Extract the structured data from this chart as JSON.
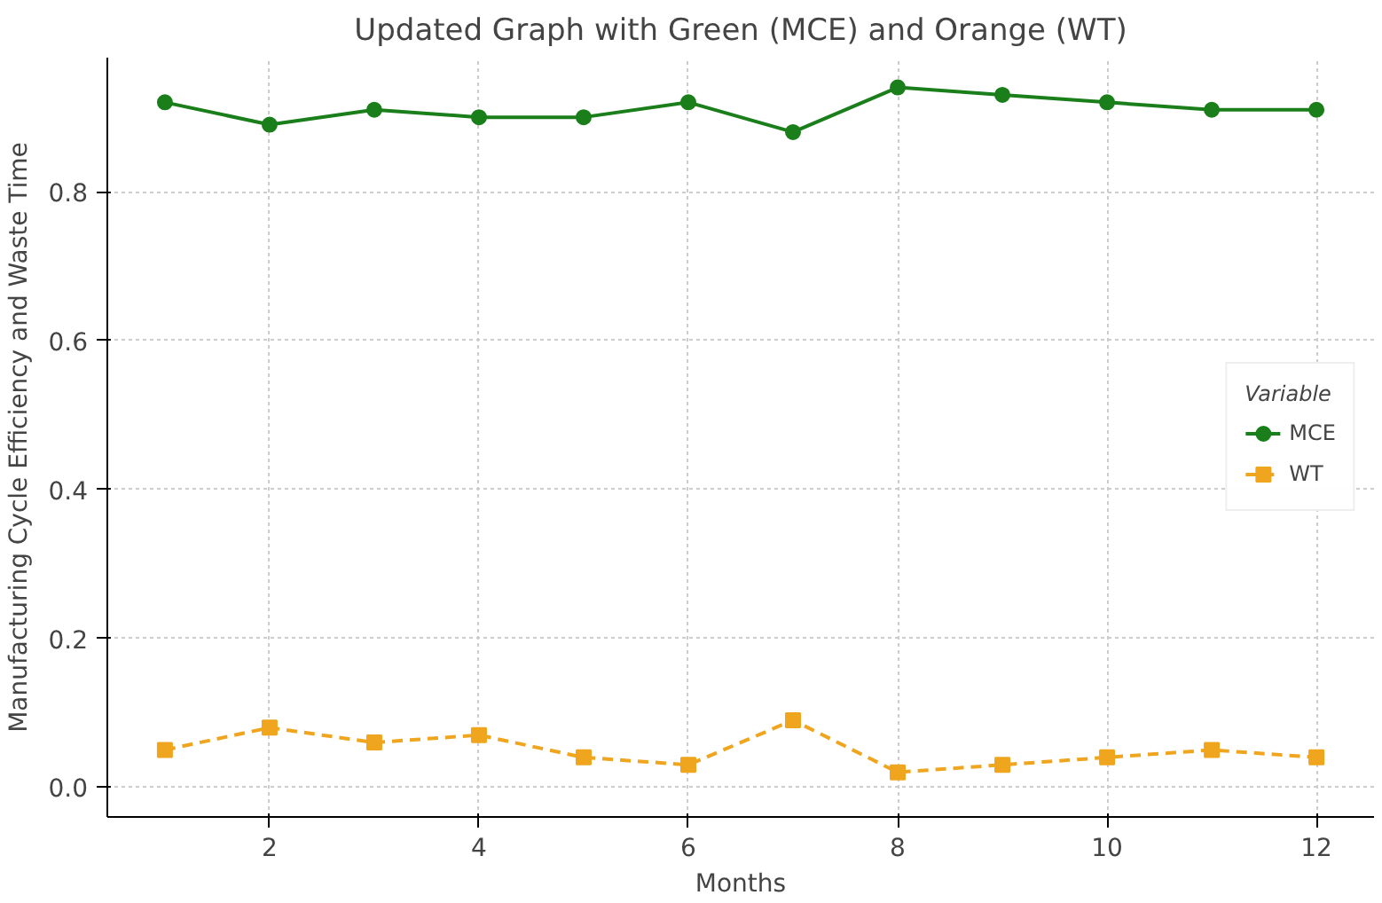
{
  "chart_data": {
    "type": "line",
    "title": "Updated Graph with Green (MCE) and Orange (WT)",
    "xlabel": "Months",
    "ylabel": "Manufacturing Cycle Efficiency and Waste Time",
    "legend_title": "Variable",
    "legend": "right",
    "grid": true,
    "x": [
      1,
      2,
      3,
      4,
      5,
      6,
      7,
      8,
      9,
      10,
      11,
      12
    ],
    "xlim": [
      0.45,
      12.55
    ],
    "xticks": [
      2,
      4,
      6,
      8,
      10,
      12
    ],
    "ylim": [
      -0.04,
      0.98
    ],
    "yticks": [
      {
        "value": 0,
        "label": "0.0"
      },
      0.2,
      0.4,
      0.6,
      0.8
    ],
    "series": [
      {
        "name": "MCE",
        "color": "#1a7f1a",
        "marker": "circle",
        "line_style": "solid",
        "values": [
          0.92,
          0.89,
          0.91,
          0.9,
          0.9,
          0.92,
          0.88,
          0.94,
          0.93,
          0.92,
          0.91,
          0.91
        ]
      },
      {
        "name": "WT",
        "color": "#f0a51e",
        "marker": "square",
        "line_style": "dashed",
        "values": [
          0.05,
          0.08,
          0.06,
          0.07,
          0.04,
          0.03,
          0.09,
          0.02,
          0.03,
          0.04,
          0.05,
          0.04
        ]
      }
    ]
  }
}
